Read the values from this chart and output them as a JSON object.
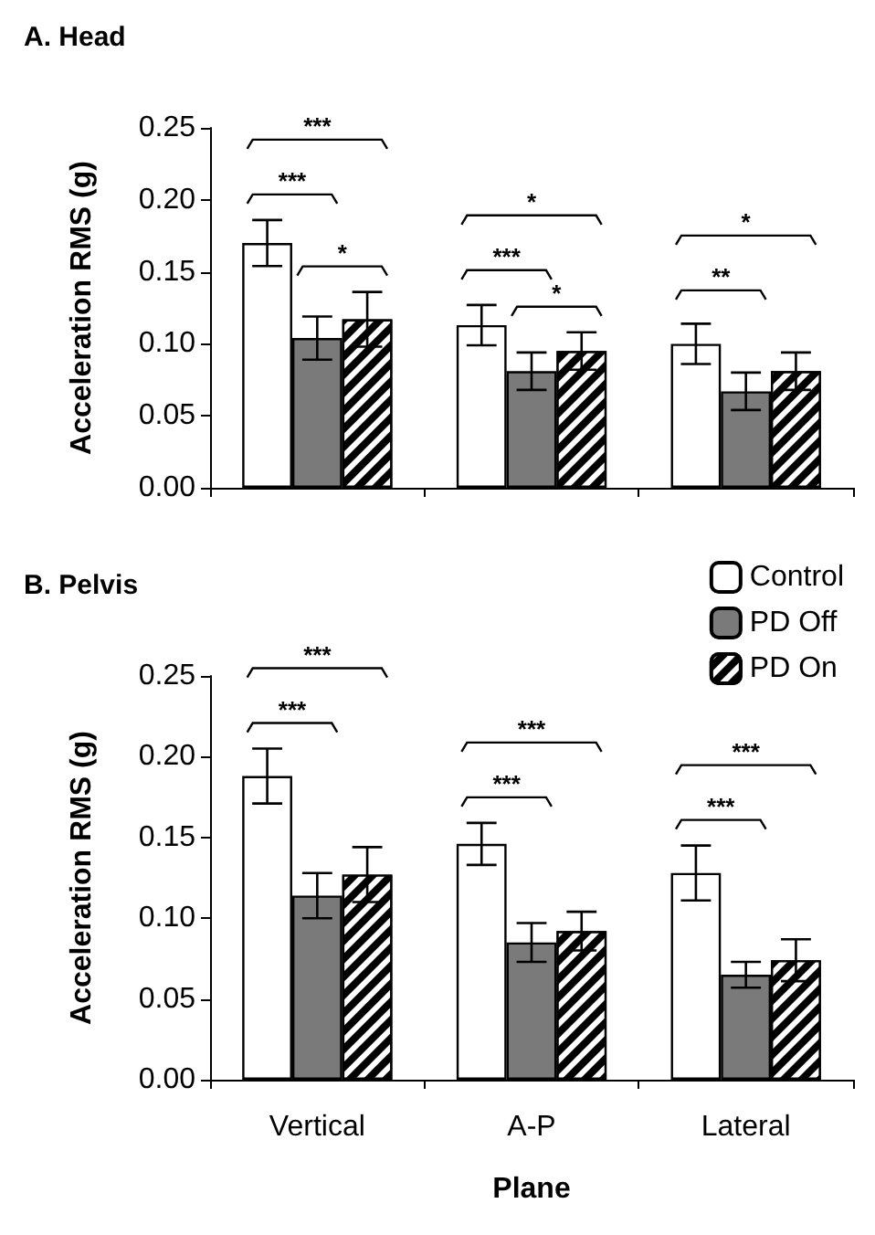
{
  "chart_data": [
    {
      "type": "bar",
      "title": "A. Head",
      "ylabel": "Acceleration RMS (g)",
      "categories": [
        null,
        null,
        null
      ],
      "series": [
        {
          "color": "#ffffff",
          "values": [
            0.17,
            0.113,
            0.1
          ],
          "errors": [
            0.016,
            0.014,
            0.014
          ]
        },
        {
          "color": "#7a7a7a",
          "values": [
            0.104,
            0.081,
            0.067
          ],
          "errors": [
            0.015,
            0.013,
            0.013
          ]
        },
        {
          "color": "#000000",
          "values": [
            0.117,
            0.095,
            0.081
          ],
          "errors": [
            0.019,
            0.013,
            0.013
          ]
        }
      ],
      "ylim": [
        0,
        0.25
      ],
      "yticks": [
        {
          "value": 0,
          "label": "0.00"
        },
        {
          "value": 0.05,
          "label": "0.05"
        },
        {
          "value": 0.1,
          "label": "0.10"
        },
        {
          "value": 0.15,
          "label": "0.15"
        },
        {
          "value": 0.2,
          "label": "0.20"
        },
        {
          "value": 0.25,
          "label": "0.25"
        }
      ],
      "tick_labels": "y",
      "grid": false,
      "legend": false,
      "annotations": [
        "***",
        "***",
        "*",
        "*",
        "***",
        "*",
        "*",
        "**"
      ]
    },
    {
      "type": "bar",
      "title": "B. Pelvis",
      "ylabel": "Acceleration RMS (g)",
      "xlabel": "Plane",
      "categories": [
        "Vertical",
        "A-P",
        "Lateral"
      ],
      "series": [
        {
          "name": "Control",
          "color": "#ffffff",
          "values": [
            0.188,
            0.146,
            0.128
          ],
          "errors": [
            0.017,
            0.013,
            0.017
          ]
        },
        {
          "name": "PD Off",
          "color": "#7a7a7a",
          "values": [
            0.114,
            0.085,
            0.065
          ],
          "errors": [
            0.014,
            0.012,
            0.008
          ]
        },
        {
          "name": "PD On",
          "color": "#000000",
          "values": [
            0.127,
            0.092,
            0.074
          ],
          "errors": [
            0.017,
            0.012,
            0.013
          ]
        }
      ],
      "ylim": [
        0,
        0.25
      ],
      "yticks": [
        {
          "value": 0,
          "label": "0.00"
        },
        {
          "value": 0.05,
          "label": "0.05"
        },
        {
          "value": 0.1,
          "label": "0.10"
        },
        {
          "value": 0.15,
          "label": "0.15"
        },
        {
          "value": 0.2,
          "label": "0.20"
        },
        {
          "value": 0.25,
          "label": "0.25"
        }
      ],
      "grid": false,
      "legend": "top right",
      "annotations": [
        "***",
        "***",
        "***",
        "***",
        "***",
        "***"
      ]
    }
  ]
}
